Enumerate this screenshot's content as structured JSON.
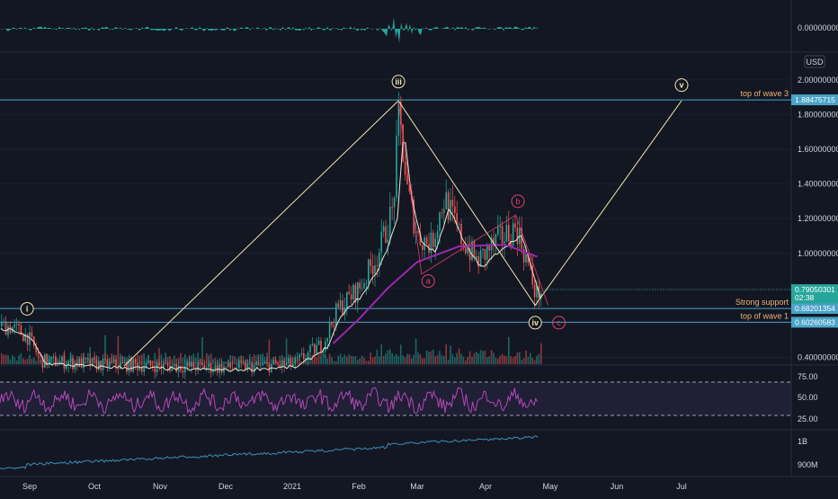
{
  "chart_data": [
    {
      "type": "histogram",
      "panel": "oscillator",
      "y_tick_labels": [
        "0.00000000"
      ],
      "color": "#26a69a"
    },
    {
      "type": "candlestick",
      "panel": "price",
      "currency": "USD",
      "y_axis": {
        "scale": "linear",
        "ylim": [
          0.32,
          2.08
        ],
        "ticks": [
          0.4,
          0.6,
          0.8,
          1.0,
          1.2,
          1.4,
          1.6,
          1.8,
          2.0
        ]
      },
      "y_tick_labels": [
        "2.00000000",
        "1.80000000",
        "1.60000000",
        "1.40000000",
        "1.20000000",
        "1.00000000",
        "0.40000000"
      ],
      "x_tick_labels": [
        "Sep",
        "Oct",
        "Nov",
        "Dec",
        "2021",
        "Feb",
        "Mar",
        "Apr",
        "May",
        "Jun",
        "Jul"
      ],
      "horizontal_levels": [
        {
          "value": 1.88475715,
          "label": "top of wave 3",
          "price_label": "1.88475715",
          "color": "#4aa3c8"
        },
        {
          "value": 0.68201354,
          "label": "Strong support",
          "price_label": "0.68201354",
          "color": "#4aa3c8"
        },
        {
          "value": 0.60260583,
          "label": "top of wave 1",
          "price_label": "0.60260583",
          "color": "#4aa3c8"
        }
      ],
      "last_price": {
        "value": 0.7905,
        "price_label": "0.79050301",
        "countdown": "02:38",
        "color": "#26a69a"
      },
      "wave_labels": [
        {
          "text": "i",
          "style": "primary",
          "date": "2020-08-30",
          "price": 0.68
        },
        {
          "text": "iii",
          "style": "primary",
          "date": "2021-02-20",
          "price": 1.99
        },
        {
          "text": "iv",
          "style": "primary",
          "date": "2021-04-24",
          "price": 0.6
        },
        {
          "text": "v",
          "style": "primary",
          "date": "2021-07-01",
          "price": 1.97
        },
        {
          "text": "a",
          "style": "correction",
          "date": "2021-03-06",
          "price": 0.84
        },
        {
          "text": "b",
          "style": "correction",
          "date": "2021-04-16",
          "price": 1.3
        },
        {
          "text": "c",
          "style": "correction",
          "date": "2021-05-05",
          "price": 0.6
        }
      ],
      "wave_path": [
        {
          "date": "2020-10-15",
          "price": 0.35
        },
        {
          "date": "2021-02-20",
          "price": 1.88
        },
        {
          "date": "2021-04-24",
          "price": 0.7
        },
        {
          "date": "2021-07-01",
          "price": 1.88
        }
      ],
      "correction_path": [
        {
          "date": "2021-02-20",
          "price": 1.88
        },
        {
          "date": "2021-03-03",
          "price": 0.88
        },
        {
          "date": "2021-04-15",
          "price": 1.22
        },
        {
          "date": "2021-04-30",
          "price": 0.7
        }
      ],
      "price_series_approx": [
        {
          "date": "2020-08-16",
          "price": 0.58
        },
        {
          "date": "2020-08-30",
          "price": 0.52
        },
        {
          "date": "2020-09-06",
          "price": 0.38
        },
        {
          "date": "2020-10-01",
          "price": 0.36
        },
        {
          "date": "2020-11-01",
          "price": 0.35
        },
        {
          "date": "2020-12-01",
          "price": 0.34
        },
        {
          "date": "2021-01-01",
          "price": 0.36
        },
        {
          "date": "2021-01-15",
          "price": 0.48
        },
        {
          "date": "2021-01-22",
          "price": 0.68
        },
        {
          "date": "2021-02-01",
          "price": 0.8
        },
        {
          "date": "2021-02-10",
          "price": 1.0
        },
        {
          "date": "2021-02-17",
          "price": 1.25
        },
        {
          "date": "2021-02-20",
          "price": 1.8
        },
        {
          "date": "2021-02-24",
          "price": 1.35
        },
        {
          "date": "2021-03-01",
          "price": 1.1
        },
        {
          "date": "2021-03-07",
          "price": 1.05
        },
        {
          "date": "2021-03-13",
          "price": 1.32
        },
        {
          "date": "2021-03-20",
          "price": 1.1
        },
        {
          "date": "2021-03-28",
          "price": 0.95
        },
        {
          "date": "2021-04-05",
          "price": 1.06
        },
        {
          "date": "2021-04-15",
          "price": 1.15
        },
        {
          "date": "2021-04-20",
          "price": 0.95
        },
        {
          "date": "2021-04-24",
          "price": 0.76
        },
        {
          "date": "2021-04-27",
          "price": 0.79
        }
      ],
      "moving_average_approx": [
        {
          "date": "2021-01-20",
          "price": 0.48
        },
        {
          "date": "2021-02-01",
          "price": 0.62
        },
        {
          "date": "2021-02-15",
          "price": 0.8
        },
        {
          "date": "2021-03-01",
          "price": 0.95
        },
        {
          "date": "2021-03-20",
          "price": 1.04
        },
        {
          "date": "2021-04-10",
          "price": 1.05
        },
        {
          "date": "2021-04-25",
          "price": 0.98
        }
      ]
    },
    {
      "type": "line",
      "panel": "rsi",
      "y_tick_labels": [
        "75.00",
        "50.00",
        "25.00"
      ],
      "bands": [
        70,
        30
      ],
      "color": "#b449b4"
    },
    {
      "type": "line",
      "panel": "volume-indicator",
      "y_tick_labels": [
        "1B",
        "900M"
      ],
      "color": "#3b8fba"
    }
  ],
  "colors": {
    "background": "#131722",
    "up": "#26a69a",
    "down": "#ef5350",
    "wave": "#f2e6b0",
    "correction": "#e0406a",
    "level": "#4aa3c8"
  }
}
